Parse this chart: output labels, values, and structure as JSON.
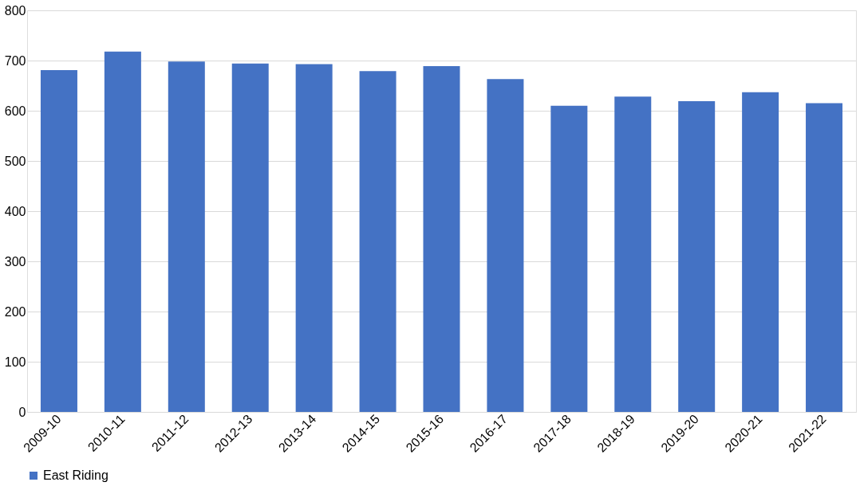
{
  "chart_data": {
    "type": "bar",
    "categories": [
      "2009-10",
      "2010-11",
      "2011-12",
      "2012-13",
      "2013-14",
      "2014-15",
      "2015-16",
      "2016-17",
      "2017-18",
      "2018-19",
      "2019-20",
      "2020-21",
      "2021-22"
    ],
    "series": [
      {
        "name": "East Riding",
        "color": "#4472c4",
        "values": [
          681,
          718,
          698,
          694,
          693,
          679,
          689,
          663,
          610,
          628,
          619,
          637,
          615
        ]
      }
    ],
    "ylim": [
      0,
      800
    ],
    "yticks": [
      0,
      100,
      200,
      300,
      400,
      500,
      600,
      700,
      800
    ],
    "grid": "y",
    "legend": "bottom"
  }
}
